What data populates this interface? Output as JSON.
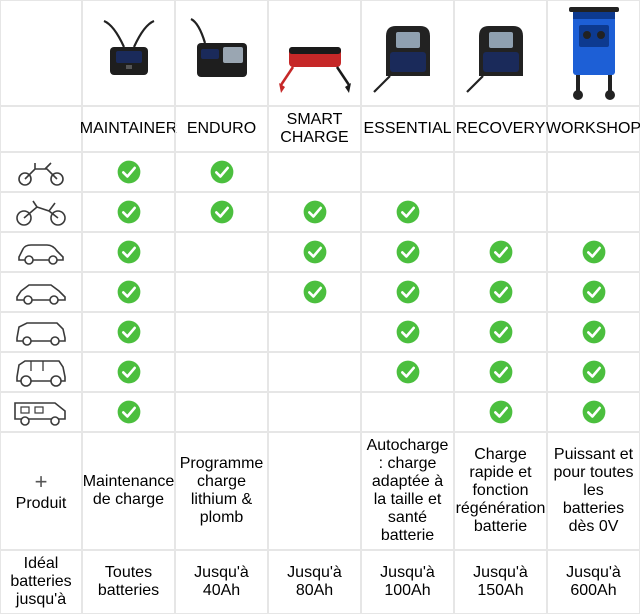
{
  "colors": {
    "header_bg": "#3a3a3a",
    "header_highlight": "#f7941d",
    "header_text": "#ffffff",
    "check_fill": "#4bbf3e",
    "check_mark": "#ffffff",
    "border": "#e6e6e6",
    "text": "#555555",
    "outline": "#3a3a3a"
  },
  "columns": [
    {
      "id": "maintainer",
      "label": "MAINTAINER",
      "highlight": false,
      "product_color": "#1a2a5a"
    },
    {
      "id": "enduro",
      "label": "ENDURO",
      "highlight": false,
      "product_color": "#1a2a5a"
    },
    {
      "id": "smartcharge",
      "label": "SMART CHARGE",
      "highlight": true,
      "product_color": "#c62828"
    },
    {
      "id": "essential",
      "label": "ESSENTIAL",
      "highlight": false,
      "product_color": "#1a2a5a"
    },
    {
      "id": "recovery",
      "label": "RECOVERY",
      "highlight": false,
      "product_color": "#1a2a5a"
    },
    {
      "id": "workshop",
      "label": "WORKSHOP",
      "highlight": false,
      "product_color": "#1d5fd6"
    }
  ],
  "vehicle_rows": [
    {
      "id": "moped",
      "checks": [
        true,
        true,
        false,
        false,
        false,
        false
      ]
    },
    {
      "id": "motorcycle",
      "checks": [
        true,
        true,
        true,
        true,
        false,
        false
      ]
    },
    {
      "id": "small-car",
      "checks": [
        true,
        false,
        true,
        true,
        true,
        true
      ]
    },
    {
      "id": "sedan",
      "checks": [
        true,
        false,
        true,
        true,
        true,
        true
      ]
    },
    {
      "id": "suv",
      "checks": [
        true,
        false,
        false,
        true,
        true,
        true
      ]
    },
    {
      "id": "offroad",
      "checks": [
        true,
        false,
        false,
        true,
        true,
        true
      ]
    },
    {
      "id": "rv",
      "checks": [
        true,
        false,
        false,
        false,
        true,
        true
      ]
    }
  ],
  "produit": {
    "label_prefix": "+",
    "label": "Produit",
    "values": [
      "Maintenance de charge",
      "Programme charge lithium & plomb",
      "",
      "Autocharge : charge adaptée à la taille et santé batterie",
      "Charge rapide et fonction régénération batterie",
      "Puissant et pour toutes les batteries dès 0V"
    ]
  },
  "ideal": {
    "label": "Idéal batteries jusqu'à",
    "values": [
      "Toutes batteries",
      "Jusqu'à 40Ah",
      "Jusqu'à 80Ah",
      "Jusqu'à 100Ah",
      "Jusqu'à 150Ah",
      "Jusqu'à 600Ah"
    ]
  }
}
